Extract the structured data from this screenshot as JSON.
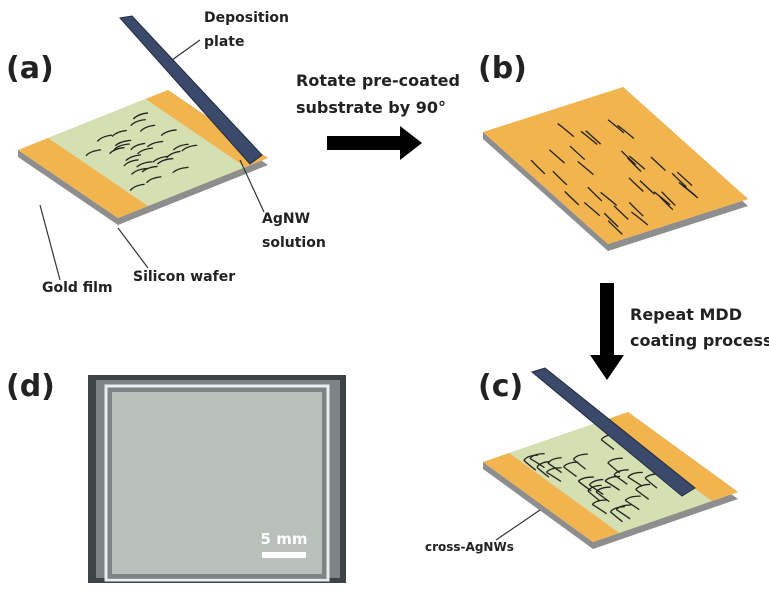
{
  "panels": {
    "a": "(a)",
    "b": "(b)",
    "c": "(c)",
    "d": "(d)"
  },
  "labels": {
    "deposition_plate": [
      "Deposition",
      "plate"
    ],
    "rotate": [
      "Rotate pre-coated",
      "substrate by 90°"
    ],
    "agnw_solution": [
      "AgNW",
      "solution"
    ],
    "gold_film": "Gold film",
    "silicon_wafer": "Silicon wafer",
    "repeat": [
      "Repeat MDD",
      "coating process"
    ],
    "cross_agnws": "cross-AgNWs",
    "scale_bar": "5 mm"
  }
}
